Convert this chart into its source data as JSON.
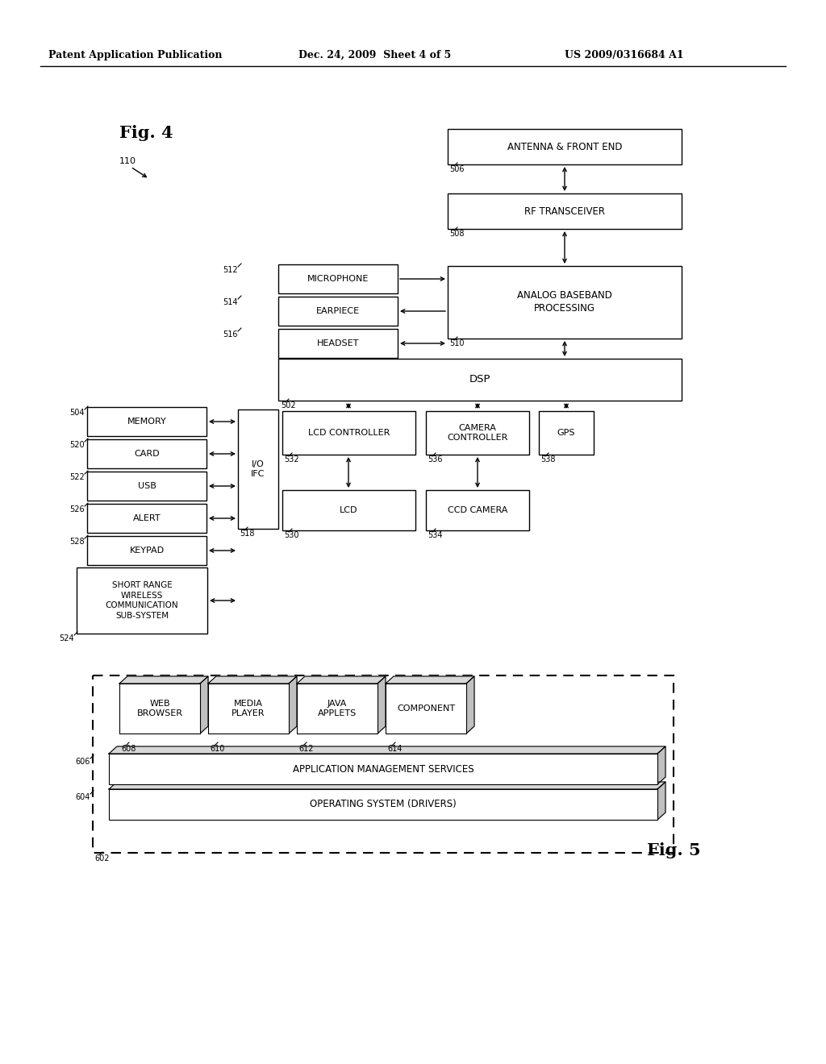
{
  "header_left": "Patent Application Publication",
  "header_mid": "Dec. 24, 2009  Sheet 4 of 5",
  "header_right": "US 2009/0316684 A1",
  "fig4_label": "Fig. 4",
  "fig5_label": "Fig. 5",
  "background": "#ffffff"
}
